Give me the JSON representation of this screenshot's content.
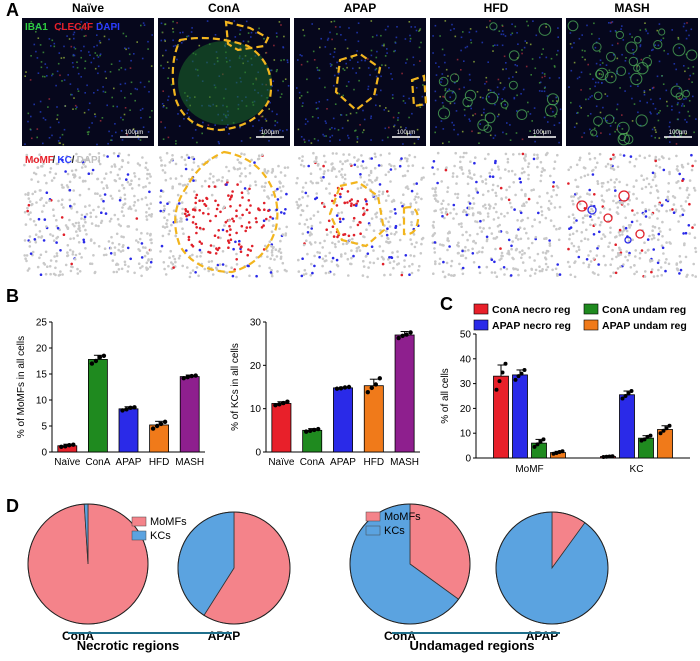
{
  "panel_letters": [
    "A",
    "B",
    "C",
    "D"
  ],
  "panel_a": {
    "column_titles": [
      "Naïve",
      "ConA",
      "APAP",
      "HFD",
      "MASH"
    ],
    "stain_legend": [
      {
        "text": "IBA1",
        "color": "#2ecc40"
      },
      {
        "text": "CLEC4F",
        "color": "#e8202a"
      },
      {
        "text": "DAPI",
        "color": "#2a3cff"
      }
    ],
    "map_legend": [
      {
        "text": "MoMF",
        "color": "#e8202a"
      },
      {
        "text": "/",
        "color": "#222222"
      },
      {
        "text": "KC",
        "color": "#2a3cff"
      },
      {
        "text": "/",
        "color": "#222222"
      },
      {
        "text": "DAPI",
        "color": "#bfbfbf"
      }
    ],
    "scale_bar": "100µm"
  },
  "chart_data": [
    {
      "type": "bar",
      "panel": "B-left",
      "categories": [
        "Naïve",
        "ConA",
        "APAP",
        "HFD",
        "MASH"
      ],
      "values": [
        1.2,
        17.8,
        8.3,
        5.2,
        14.5
      ],
      "errors": [
        0.3,
        0.8,
        0.4,
        0.7,
        0.3
      ],
      "points": [
        [
          1.0,
          1.1,
          1.3,
          1.4
        ],
        [
          17.0,
          17.5,
          18.2,
          18.5
        ],
        [
          8.0,
          8.2,
          8.5,
          8.6
        ],
        [
          4.5,
          5.0,
          5.4,
          5.8
        ],
        [
          14.2,
          14.4,
          14.6,
          14.7
        ]
      ],
      "colors": [
        "#e8202a",
        "#1f8a1f",
        "#2a2ae8",
        "#f07a1a",
        "#8e1f8e"
      ],
      "ylabel": "% of MoMFs in all cells",
      "ylim": [
        0,
        25
      ],
      "yticks": [
        0,
        5,
        10,
        15,
        20,
        25
      ]
    },
    {
      "type": "bar",
      "panel": "B-right",
      "categories": [
        "Naïve",
        "ConA",
        "APAP",
        "HFD",
        "MASH"
      ],
      "values": [
        11.2,
        5.0,
        14.8,
        15.3,
        27.0
      ],
      "errors": [
        0.4,
        0.4,
        0.2,
        1.5,
        0.8
      ],
      "points": [
        [
          10.8,
          11.0,
          11.3,
          11.6
        ],
        [
          4.7,
          4.9,
          5.1,
          5.3
        ],
        [
          14.6,
          14.7,
          14.9,
          15.0
        ],
        [
          13.8,
          14.8,
          15.6,
          17.0
        ],
        [
          26.3,
          26.8,
          27.1,
          27.6
        ]
      ],
      "colors": [
        "#e8202a",
        "#1f8a1f",
        "#2a2ae8",
        "#f07a1a",
        "#8e1f8e"
      ],
      "ylabel": "% of KCs in all cells",
      "ylim": [
        0,
        30
      ],
      "yticks": [
        0,
        10,
        20,
        30
      ]
    },
    {
      "type": "bar",
      "panel": "C",
      "categories": [
        "MoMF",
        "KC"
      ],
      "series": [
        {
          "name": "ConA necro reg",
          "color": "#e8202a",
          "values": [
            33.0,
            0.6
          ],
          "errors": [
            4.5,
            0.2
          ],
          "points": [
            [
              27.5,
              31.0,
              34.5,
              38.0
            ],
            [
              0.4,
              0.5,
              0.6,
              0.7
            ]
          ]
        },
        {
          "name": "APAP necro reg",
          "color": "#2a2ae8",
          "values": [
            33.5,
            25.5
          ],
          "errors": [
            2.0,
            1.5
          ],
          "points": [
            [
              31.5,
              33.0,
              34.0,
              35.5
            ],
            [
              24.0,
              25.0,
              26.0,
              27.0
            ]
          ]
        },
        {
          "name": "ConA undam reg",
          "color": "#1f8a1f",
          "values": [
            6.0,
            8.0
          ],
          "errors": [
            1.5,
            1.0
          ],
          "points": [
            [
              4.5,
              5.5,
              6.5,
              7.5
            ],
            [
              7.0,
              7.5,
              8.5,
              9.0
            ]
          ]
        },
        {
          "name": "APAP undam reg",
          "color": "#f07a1a",
          "values": [
            2.2,
            11.5
          ],
          "errors": [
            0.5,
            1.5
          ],
          "points": [
            [
              1.7,
              2.0,
              2.4,
              2.7
            ],
            [
              10.0,
              11.0,
              12.0,
              13.0
            ]
          ]
        }
      ],
      "ylabel": "% of all cells",
      "ylim": [
        0,
        50
      ],
      "yticks": [
        0,
        10,
        20,
        30,
        40,
        50
      ]
    },
    {
      "type": "pie",
      "panel": "D-necrotic-ConA",
      "labels": [
        "MoMFs",
        "KCs"
      ],
      "values": [
        99,
        1
      ],
      "colors": [
        "#f4838a",
        "#5ba3e0"
      ],
      "caption": "ConA"
    },
    {
      "type": "pie",
      "panel": "D-necrotic-APAP",
      "labels": [
        "MoMFs",
        "KCs"
      ],
      "values": [
        59,
        41
      ],
      "colors": [
        "#f4838a",
        "#5ba3e0"
      ],
      "caption": "APAP"
    },
    {
      "type": "pie",
      "panel": "D-undamaged-ConA",
      "labels": [
        "MoMFs",
        "KCs"
      ],
      "values": [
        35,
        65
      ],
      "colors": [
        "#f4838a",
        "#5ba3e0"
      ],
      "caption": "ConA"
    },
    {
      "type": "pie",
      "panel": "D-undamaged-APAP",
      "labels": [
        "MoMFs",
        "KCs"
      ],
      "values": [
        10,
        90
      ],
      "colors": [
        "#f4838a",
        "#5ba3e0"
      ],
      "caption": "APAP"
    }
  ],
  "panel_d": {
    "legend": [
      {
        "text": "MoMFs",
        "color": "#f4838a"
      },
      {
        "text": "KCs",
        "color": "#5ba3e0"
      }
    ],
    "group_labels": [
      "Necrotic regions",
      "Undamaged regions"
    ],
    "underline_color": "#1f6f8b"
  }
}
